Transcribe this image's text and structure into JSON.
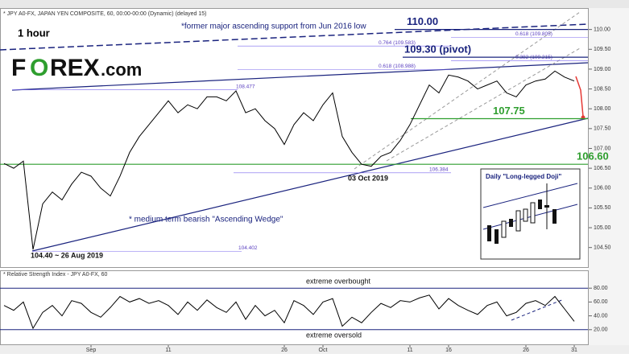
{
  "chart_data": {
    "type": "line",
    "header": "* JPY A0-FX, JAPAN YEN COMPOSITE, 60, 00:00-00:00 (Dynamic) (delayed 15)",
    "timeframe": "1 hour",
    "logo": [
      "F",
      "O",
      "REX",
      ".com"
    ],
    "series": [
      {
        "name": "JPY A0-FX",
        "color": "#000000",
        "values": [
          106.62,
          106.5,
          106.68,
          104.45,
          105.6,
          105.9,
          105.7,
          106.1,
          106.4,
          106.3,
          106.0,
          105.8,
          106.3,
          106.9,
          107.3,
          107.6,
          107.9,
          108.2,
          107.9,
          108.1,
          108.0,
          108.3,
          108.3,
          108.2,
          108.45,
          107.9,
          108.0,
          107.7,
          107.5,
          107.1,
          107.6,
          107.9,
          107.7,
          108.1,
          108.4,
          107.3,
          106.9,
          106.6,
          106.55,
          106.8,
          106.9,
          107.2,
          107.6,
          108.1,
          108.6,
          108.4,
          108.85,
          108.8,
          108.7,
          108.5,
          108.6,
          108.7,
          108.4,
          108.3,
          108.6,
          108.7,
          108.75,
          108.95,
          108.8,
          108.7
        ]
      }
    ],
    "xticks": [
      {
        "value": 9,
        "label": "Sep"
      },
      {
        "value": 17,
        "label": "11"
      },
      {
        "value": 29,
        "label": "26"
      },
      {
        "value": 33,
        "label": "Oct"
      },
      {
        "value": 42,
        "label": "11"
      },
      {
        "value": 46,
        "label": "16"
      },
      {
        "value": 54,
        "label": "26"
      },
      {
        "value": 59,
        "label": "31"
      }
    ],
    "ylim": [
      104.25,
      110.5
    ],
    "yticks": [
      {
        "value": 104.5,
        "label": "104.50"
      },
      {
        "value": 105,
        "label": "105.00"
      },
      {
        "value": 105.5,
        "label": "105.50"
      },
      {
        "value": 106,
        "label": "106.00"
      },
      {
        "value": 106.5,
        "label": "106.50"
      },
      {
        "value": 107,
        "label": "107.00"
      },
      {
        "value": 107.5,
        "label": "107.50"
      },
      {
        "value": 108,
        "label": "108.00"
      },
      {
        "value": 108.5,
        "label": "108.50"
      },
      {
        "value": 109,
        "label": "109.00"
      },
      {
        "value": 109.5,
        "label": "109.50"
      },
      {
        "value": 110,
        "label": "110.00"
      }
    ],
    "levels": [
      {
        "label": "110.00",
        "value": 110,
        "color": "#1a237e"
      },
      {
        "label": "109.30 (pivot)",
        "value": 109.3,
        "color": "#1a237e"
      },
      {
        "label": "107.75",
        "value": 107.75,
        "color": "#2e9e2e"
      },
      {
        "label": "106.60",
        "value": 106.6,
        "color": "#2e9e2e"
      }
    ],
    "fib_levels": [
      {
        "label": "0.764 (109.583)",
        "value": 109.583
      },
      {
        "label": "0.618 (108.988)",
        "value": 108.988
      },
      {
        "label": "108.477",
        "value": 108.477
      },
      {
        "label": "106.384",
        "value": 106.384
      },
      {
        "label": "104.402",
        "value": 104.402
      },
      {
        "label": "0.618 (109.805)",
        "value": 109.805
      },
      {
        "label": "0.382 (109.215)",
        "value": 109.215
      }
    ],
    "annotations": [
      "*former major ascending support from Jun 2016 low",
      "* medium term bearish \"Ascending Wedge\"",
      "104.40 ~ 26 Aug 2019",
      "03 Oct 2019",
      "Daily \"Long-legged Doji\""
    ],
    "rsi": {
      "title": "* Relative Strength Index - JPY A0-FX, 60",
      "values": [
        55,
        48,
        60,
        22,
        45,
        55,
        40,
        62,
        58,
        45,
        38,
        52,
        68,
        60,
        65,
        58,
        62,
        55,
        42,
        60,
        48,
        63,
        52,
        45,
        60,
        35,
        55,
        40,
        48,
        30,
        62,
        55,
        42,
        60,
        65,
        25,
        38,
        30,
        45,
        58,
        52,
        62,
        60,
        66,
        70,
        50,
        65,
        55,
        48,
        42,
        55,
        60,
        40,
        45,
        58,
        62,
        55,
        68,
        50,
        32
      ],
      "ylim": [
        0,
        100
      ],
      "yticks": [
        {
          "value": 20,
          "label": "20.00"
        },
        {
          "value": 40,
          "label": "40.00"
        },
        {
          "value": 60,
          "label": "60.00"
        },
        {
          "value": 80,
          "label": "80.00"
        }
      ],
      "overbought": {
        "label": "extreme overbought",
        "value": 80
      },
      "oversold": {
        "label": "extreme oversold",
        "value": 20
      }
    }
  }
}
